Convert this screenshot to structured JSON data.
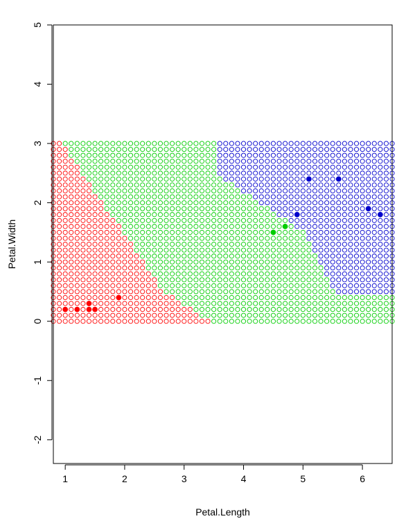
{
  "chart_data": {
    "type": "scatter",
    "title": "",
    "xlabel": "Petal.Length",
    "ylabel": "Petal.Width",
    "xlim": [
      0.8,
      6.5
    ],
    "ylim": [
      -2.4,
      5.0
    ],
    "x_ticks": [
      "1",
      "2",
      "3",
      "4",
      "5",
      "6"
    ],
    "y_ticks": [
      "-2",
      "-1",
      "0",
      "1",
      "2",
      "3",
      "4",
      "5"
    ],
    "grid": false,
    "legend": "none",
    "background_grid": {
      "x_range": [
        0.8,
        6.5
      ],
      "y_range": [
        0.0,
        3.0
      ],
      "x_step": 0.1,
      "y_step": 0.1,
      "marker": "open-circle",
      "class_colors": {
        "red": "#ff0000",
        "green": "#00cd00",
        "blue": "#0000cd"
      }
    },
    "series": [
      {
        "color": "#ff0000",
        "marker": "filled-circle",
        "points": [
          [
            1.0,
            0.2
          ],
          [
            1.2,
            0.2
          ],
          [
            1.4,
            0.2
          ],
          [
            1.5,
            0.2
          ],
          [
            1.4,
            0.3
          ],
          [
            1.9,
            0.4
          ]
        ]
      },
      {
        "color": "#00cd00",
        "marker": "filled-circle",
        "points": [
          [
            4.5,
            1.5
          ],
          [
            4.7,
            1.6
          ]
        ]
      },
      {
        "color": "#0000cd",
        "marker": "filled-circle",
        "points": [
          [
            4.9,
            1.8
          ],
          [
            5.1,
            2.4
          ],
          [
            5.6,
            2.4
          ],
          [
            6.1,
            1.9
          ],
          [
            6.3,
            1.8
          ]
        ]
      }
    ]
  }
}
